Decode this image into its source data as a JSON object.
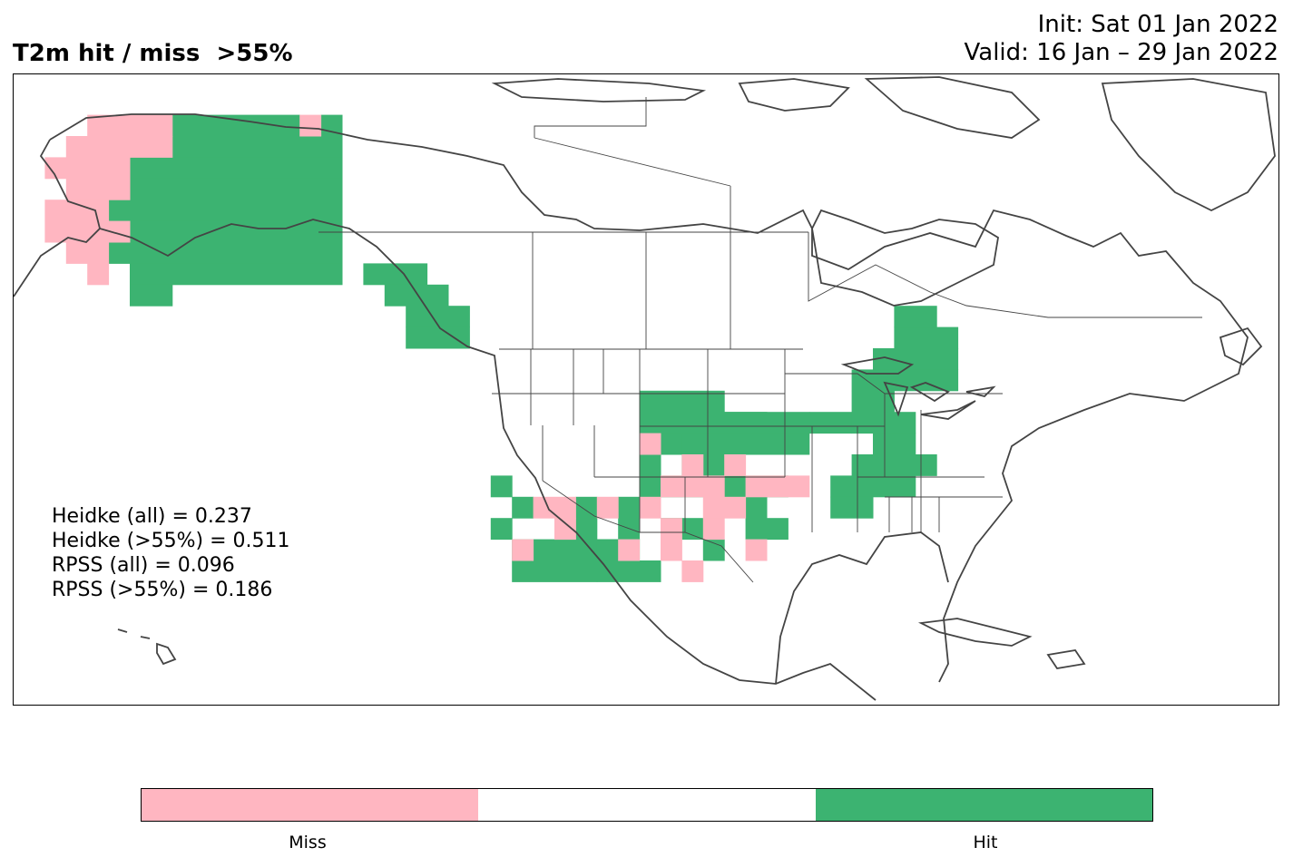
{
  "title": {
    "left": "T2m hit / miss  >55%",
    "init": "Init: Sat 01 Jan 2022",
    "valid": "Valid: 16 Jan – 29 Jan 2022"
  },
  "stats": {
    "heidke_all": "Heidke (all) = 0.237",
    "heidke_55": "Heidke (>55%) = 0.511",
    "rpss_all": "RPSS (all) = 0.096",
    "rpss_55": "RPSS (>55%) = 0.186"
  },
  "colorbar": {
    "miss_label": "Miss",
    "hit_label": "Hit",
    "miss_color": "#ffb6c1",
    "neutral_color": "#ffffff",
    "hit_color": "#3cb371"
  },
  "colors": {
    "hit": "#3cb371",
    "miss": "#ffb6c1",
    "coastline": "#444444"
  },
  "map": {
    "region": "North America",
    "projection": "PlateCarree",
    "hit_cells": [
      "Alaska interior",
      "Alaska south coast",
      "Alaska panhandle",
      "Montana",
      "Wyoming",
      "South Dakota",
      "Nebraska",
      "Colorado east",
      "Arizona",
      "New Mexico",
      "Great Lakes",
      "New York",
      "New England"
    ],
    "miss_cells": [
      "Alaska west coast",
      "Nevada south",
      "Utah south",
      "Colorado",
      "Kansas west",
      "New Mexico north",
      "Southern California"
    ]
  }
}
